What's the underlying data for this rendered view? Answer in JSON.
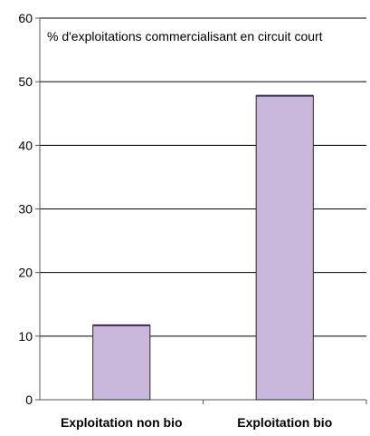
{
  "chart_data": {
    "type": "bar",
    "title": "% d'exploitations commercialisant en circuit court",
    "categories": [
      "Exploitation non bio",
      "Exploitation bio"
    ],
    "values": [
      11.7,
      47.8
    ],
    "ylim": [
      0,
      60
    ],
    "yticks": [
      0,
      10,
      20,
      30,
      40,
      50,
      60
    ],
    "xlabel": "",
    "ylabel": "",
    "grid": true,
    "legend": false,
    "colors": {
      "bar_fill": "#c9b7dc",
      "bar_stroke": "#2a2a2a",
      "bar_top": "#3a2a55",
      "grid": "#000000",
      "axis": "#555555"
    }
  }
}
